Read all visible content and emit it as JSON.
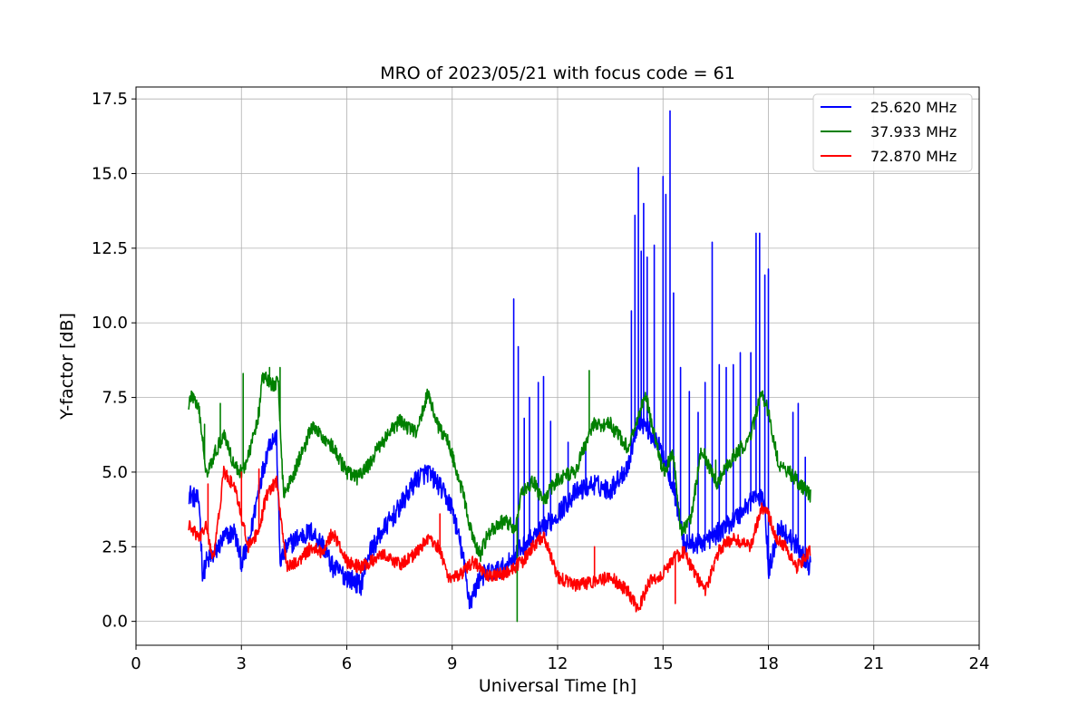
{
  "chart_data": {
    "type": "line",
    "title": "MRO of 2023/05/21 with focus code = 61",
    "xlabel": "Universal Time [h]",
    "ylabel": "Y-factor [dB]",
    "xlim": [
      0,
      24
    ],
    "ylim": [
      -0.8,
      17.9
    ],
    "xticks": [
      0,
      3,
      6,
      9,
      12,
      15,
      18,
      21,
      24
    ],
    "xtick_labels": [
      "0",
      "3",
      "6",
      "9",
      "12",
      "15",
      "18",
      "21",
      "24"
    ],
    "yticks": [
      0.0,
      2.5,
      5.0,
      7.5,
      10.0,
      12.5,
      15.0,
      17.5
    ],
    "ytick_labels": [
      "0.0",
      "2.5",
      "5.0",
      "7.5",
      "10.0",
      "12.5",
      "15.0",
      "17.5"
    ],
    "grid": true,
    "legend_position": "top-right",
    "series": [
      {
        "name": "25.620 MHz",
        "color": "#0000ff",
        "noise": 0.35,
        "x": [
          1.5,
          1.8,
          1.9,
          2.0,
          2.2,
          2.5,
          2.8,
          3.0,
          3.2,
          3.5,
          3.8,
          4.0,
          4.1,
          4.3,
          4.6,
          5.0,
          5.3,
          5.6,
          6.0,
          6.4,
          6.6,
          7.0,
          7.5,
          8.0,
          8.3,
          8.6,
          9.0,
          9.3,
          9.5,
          9.8,
          10.0,
          10.5,
          11.0,
          11.5,
          12.0,
          12.5,
          13.0,
          13.5,
          14.0,
          14.3,
          14.6,
          15.0,
          15.3,
          15.6,
          16.0,
          16.4,
          16.8,
          17.2,
          17.6,
          17.9,
          18.0,
          18.3,
          18.6,
          18.9,
          19.2
        ],
        "y": [
          4.3,
          4.0,
          1.5,
          2.0,
          2.2,
          2.8,
          3.0,
          2.0,
          2.5,
          4.5,
          6.0,
          6.2,
          2.0,
          2.5,
          2.8,
          3.0,
          2.6,
          1.8,
          1.5,
          1.2,
          2.2,
          3.0,
          3.8,
          4.8,
          5.0,
          4.6,
          3.8,
          2.2,
          0.6,
          1.5,
          1.6,
          1.8,
          2.5,
          3.0,
          3.6,
          4.3,
          4.6,
          4.4,
          5.2,
          6.8,
          6.4,
          5.6,
          4.5,
          2.6,
          2.6,
          2.8,
          3.2,
          3.6,
          4.2,
          4.0,
          1.6,
          3.2,
          2.8,
          2.4,
          1.8
        ],
        "spikes": [
          [
            10.75,
            10.8
          ],
          [
            10.88,
            9.2
          ],
          [
            11.05,
            6.8
          ],
          [
            11.2,
            7.5
          ],
          [
            11.45,
            8.0
          ],
          [
            11.6,
            8.2
          ],
          [
            11.8,
            6.7
          ],
          [
            12.3,
            6.0
          ],
          [
            12.8,
            5.8
          ],
          [
            14.1,
            10.4
          ],
          [
            14.2,
            13.6
          ],
          [
            14.3,
            15.2
          ],
          [
            14.38,
            12.4
          ],
          [
            14.45,
            14.0
          ],
          [
            14.55,
            12.2
          ],
          [
            14.75,
            12.6
          ],
          [
            15.0,
            14.9
          ],
          [
            15.08,
            14.3
          ],
          [
            15.2,
            17.1
          ],
          [
            15.3,
            11.0
          ],
          [
            15.5,
            8.5
          ],
          [
            15.75,
            7.7
          ],
          [
            16.0,
            7.0
          ],
          [
            16.2,
            8.0
          ],
          [
            16.4,
            12.7
          ],
          [
            16.6,
            8.6
          ],
          [
            16.8,
            8.5
          ],
          [
            17.0,
            8.6
          ],
          [
            17.2,
            9.0
          ],
          [
            17.5,
            9.0
          ],
          [
            17.65,
            13.0
          ],
          [
            17.75,
            13.0
          ],
          [
            17.9,
            11.6
          ],
          [
            18.0,
            11.8
          ],
          [
            18.7,
            7.0
          ],
          [
            18.85,
            7.3
          ],
          [
            19.05,
            5.5
          ]
        ]
      },
      {
        "name": "37.933 MHz",
        "color": "#008000",
        "noise": 0.25,
        "x": [
          1.5,
          1.6,
          1.8,
          2.0,
          2.2,
          2.5,
          2.8,
          3.0,
          3.2,
          3.5,
          3.6,
          3.9,
          4.05,
          4.2,
          4.5,
          5.0,
          5.5,
          6.0,
          6.3,
          6.6,
          7.0,
          7.5,
          8.0,
          8.3,
          8.6,
          8.9,
          9.3,
          9.6,
          9.8,
          10.0,
          10.5,
          10.8,
          11.0,
          11.3,
          11.6,
          12.0,
          12.5,
          13.0,
          13.5,
          14.0,
          14.5,
          15.0,
          15.3,
          15.5,
          15.7,
          15.8,
          16.1,
          16.5,
          17.0,
          17.5,
          17.8,
          18.0,
          18.3,
          18.6,
          19.2
        ],
        "y": [
          7.3,
          7.6,
          7.0,
          5.0,
          5.5,
          6.3,
          5.2,
          5.0,
          5.5,
          7.0,
          8.2,
          7.9,
          8.0,
          4.2,
          5.0,
          6.5,
          6.0,
          5.0,
          4.8,
          5.2,
          6.0,
          6.7,
          6.3,
          7.7,
          6.5,
          6.0,
          4.3,
          2.7,
          2.2,
          2.9,
          3.4,
          3.1,
          4.4,
          4.7,
          4.0,
          4.8,
          5.0,
          6.6,
          6.6,
          5.8,
          7.6,
          5.0,
          5.6,
          3.0,
          3.2,
          3.5,
          5.8,
          4.6,
          5.5,
          6.2,
          7.7,
          7.0,
          5.2,
          5.0,
          4.2
        ],
        "spikes": [
          [
            1.95,
            6.6
          ],
          [
            2.4,
            7.3
          ],
          [
            3.05,
            8.3
          ],
          [
            3.8,
            8.5
          ],
          [
            4.1,
            8.5
          ],
          [
            10.85,
            0.0
          ],
          [
            12.9,
            8.4
          ],
          [
            16.5,
            5.4
          ]
        ]
      },
      {
        "name": "72.870 MHz",
        "color": "#ff0000",
        "noise": 0.22,
        "x": [
          1.5,
          1.8,
          2.0,
          2.2,
          2.5,
          2.8,
          3.0,
          3.2,
          3.5,
          3.7,
          4.0,
          4.3,
          4.6,
          5.0,
          5.3,
          5.6,
          6.0,
          6.4,
          6.7,
          7.0,
          7.5,
          8.0,
          8.3,
          8.6,
          8.9,
          9.2,
          9.6,
          10.0,
          10.5,
          11.0,
          11.3,
          11.6,
          12.0,
          12.5,
          13.0,
          13.5,
          14.0,
          14.3,
          14.6,
          15.0,
          15.3,
          15.6,
          15.9,
          16.2,
          16.6,
          17.0,
          17.5,
          17.8,
          18.0,
          18.2,
          18.5,
          18.8,
          19.2
        ],
        "y": [
          3.2,
          2.8,
          3.2,
          2.0,
          5.0,
          4.5,
          3.5,
          2.5,
          3.0,
          4.2,
          4.7,
          1.8,
          2.0,
          2.5,
          2.3,
          3.0,
          2.0,
          1.8,
          2.0,
          2.3,
          1.9,
          2.3,
          2.8,
          2.5,
          1.5,
          1.5,
          2.0,
          1.5,
          1.6,
          2.0,
          2.5,
          2.9,
          1.5,
          1.2,
          1.3,
          1.5,
          1.0,
          0.4,
          1.3,
          1.6,
          2.1,
          2.3,
          1.6,
          1.0,
          2.4,
          2.8,
          2.5,
          3.8,
          3.6,
          2.8,
          2.5,
          1.8,
          2.4
        ],
        "spikes": [
          [
            2.05,
            4.6
          ],
          [
            3.0,
            5.0
          ],
          [
            3.5,
            5.1
          ],
          [
            8.65,
            3.6
          ],
          [
            13.05,
            2.5
          ],
          [
            15.35,
            0.6
          ],
          [
            15.55,
            2.5
          ]
        ]
      }
    ]
  }
}
